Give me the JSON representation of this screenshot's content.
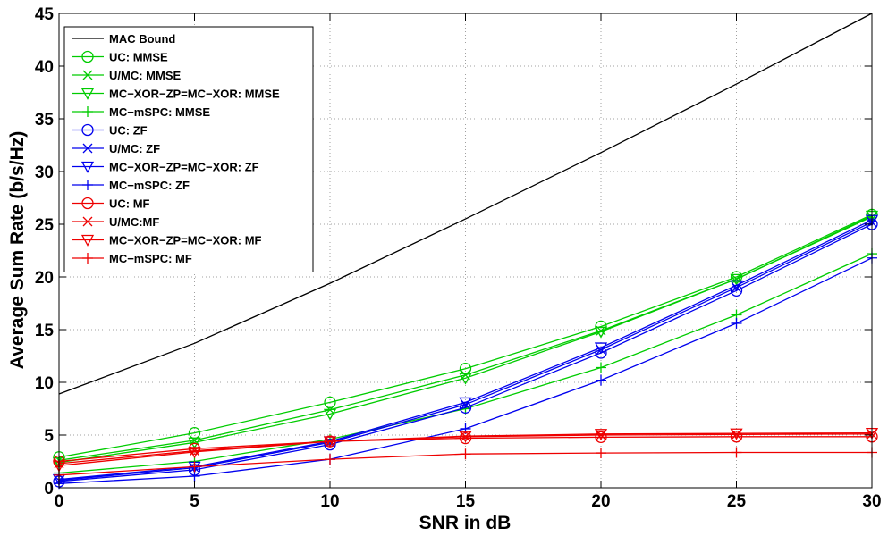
{
  "chart_data": {
    "type": "line",
    "title": "",
    "xlabel": "SNR in dB",
    "ylabel": "Average Sum Rate (b/s/Hz)",
    "xlim": [
      0,
      30
    ],
    "ylim": [
      0,
      45
    ],
    "xticks": [
      0,
      5,
      10,
      15,
      20,
      25,
      30
    ],
    "yticks": [
      0,
      5,
      10,
      15,
      20,
      25,
      30,
      35,
      40,
      45
    ],
    "grid": true,
    "legend_position": "top-left",
    "x": [
      0,
      5,
      10,
      15,
      20,
      25,
      30
    ],
    "series": [
      {
        "name": "MAC Bound",
        "color": "#000000",
        "marker": "none",
        "values": [
          8.9,
          13.7,
          19.4,
          25.5,
          31.8,
          38.3,
          45.0
        ]
      },
      {
        "name": "UC: MMSE",
        "color": "#00cc00",
        "marker": "circle",
        "values": [
          2.9,
          5.2,
          8.1,
          11.3,
          15.3,
          20.0,
          25.9
        ]
      },
      {
        "name": "U/MC: MMSE",
        "color": "#00cc00",
        "marker": "x",
        "values": [
          2.6,
          4.5,
          7.4,
          10.7,
          14.9,
          19.8,
          25.7
        ]
      },
      {
        "name": "MC−XOR−ZP=MC−XOR: MMSE",
        "color": "#00cc00",
        "marker": "triangle-down",
        "values": [
          2.4,
          4.3,
          7.0,
          10.4,
          14.8,
          19.8,
          25.8
        ]
      },
      {
        "name": "MC−mSPC: MMSE",
        "color": "#00cc00",
        "marker": "plus",
        "values": [
          1.4,
          2.5,
          4.6,
          7.5,
          11.4,
          16.4,
          22.2
        ]
      },
      {
        "name": "UC: ZF",
        "color": "#0000ee",
        "marker": "circle",
        "values": [
          0.6,
          1.7,
          4.1,
          7.6,
          12.8,
          18.7,
          25.0
        ]
      },
      {
        "name": "U/MC: ZF",
        "color": "#0000ee",
        "marker": "x",
        "values": [
          0.7,
          1.9,
          4.3,
          7.9,
          13.1,
          19.0,
          25.2
        ]
      },
      {
        "name": "MC−XOR−ZP=MC−XOR: ZF",
        "color": "#0000ee",
        "marker": "triangle-down",
        "values": [
          0.8,
          2.0,
          4.4,
          8.1,
          13.3,
          19.2,
          25.4
        ]
      },
      {
        "name": "MC−mSPC: ZF",
        "color": "#0000ee",
        "marker": "plus",
        "values": [
          0.4,
          1.1,
          2.7,
          5.6,
          10.2,
          15.6,
          21.8
        ]
      },
      {
        "name": "UC: MF",
        "color": "#ee0000",
        "marker": "circle",
        "values": [
          2.5,
          3.7,
          4.4,
          4.7,
          4.8,
          4.85,
          4.85
        ]
      },
      {
        "name": "U/MC:MF",
        "color": "#ee0000",
        "marker": "x",
        "values": [
          2.3,
          3.5,
          4.4,
          4.85,
          5.0,
          5.05,
          5.1
        ]
      },
      {
        "name": "MC−XOR−ZP=MC−XOR: MF",
        "color": "#ee0000",
        "marker": "triangle-down",
        "values": [
          2.1,
          3.4,
          4.4,
          4.9,
          5.1,
          5.15,
          5.2
        ]
      },
      {
        "name": "MC−mSPC: MF",
        "color": "#ee0000",
        "marker": "plus",
        "values": [
          1.2,
          2.0,
          2.7,
          3.2,
          3.3,
          3.35,
          3.35
        ]
      }
    ]
  }
}
